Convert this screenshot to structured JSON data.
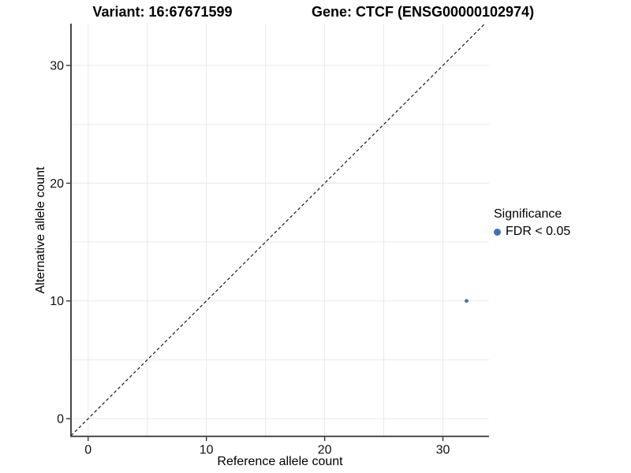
{
  "chart_data": {
    "type": "scatter",
    "title_left": "Variant: 16:67671599",
    "title_right": "Gene: CTCF (ENSG00000102974)",
    "xlabel": "Reference allele count",
    "ylabel": "Alternative allele count",
    "xlim": [
      -1.45,
      33.9
    ],
    "ylim": [
      -1.5,
      33.55
    ],
    "x_ticks": [
      0,
      10,
      20,
      30
    ],
    "y_ticks": [
      0,
      10,
      20,
      30
    ],
    "grid": true,
    "grid_step": 5,
    "reference_line": {
      "type": "identity",
      "slope": 1,
      "intercept": 0,
      "style": "dashed"
    },
    "points": [
      {
        "x": 32,
        "y": 10,
        "series": "FDR < 0.05"
      }
    ],
    "legend": {
      "title": "Significance",
      "position": "right",
      "items": [
        {
          "label": "FDR < 0.05",
          "color": "#4273ae"
        }
      ]
    },
    "colors": {
      "point": "#4273ae",
      "gridline": "#e8e8e8",
      "axis": "#333333",
      "reference_line": "#1a1a1a"
    }
  }
}
